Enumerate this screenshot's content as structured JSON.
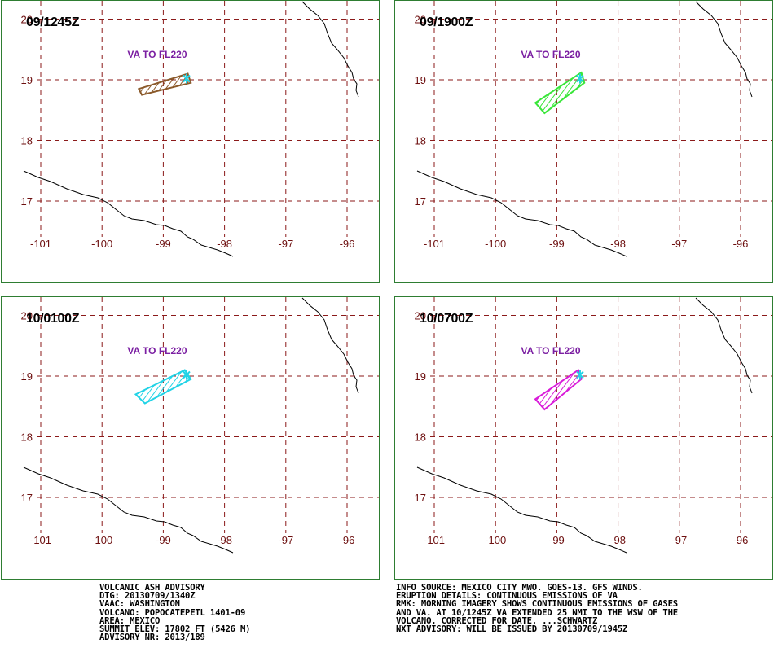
{
  "panels": [
    {
      "time": "09/1245Z",
      "label": "VA TO FL220",
      "color": "#8b5a2b",
      "polygon": [
        [
          -98.6,
          19.1
        ],
        [
          -98.55,
          18.95
        ],
        [
          -99.35,
          18.75
        ],
        [
          -99.4,
          18.85
        ]
      ]
    },
    {
      "time": "09/1900Z",
      "label": "VA TO FL220",
      "color": "#39e639",
      "polygon": [
        [
          -98.6,
          19.12
        ],
        [
          -98.55,
          18.95
        ],
        [
          -99.2,
          18.45
        ],
        [
          -99.35,
          18.62
        ]
      ]
    },
    {
      "time": "10/0100Z",
      "label": "VA TO FL220",
      "color": "#22d3e6",
      "polygon": [
        [
          -98.65,
          19.1
        ],
        [
          -98.55,
          18.95
        ],
        [
          -99.3,
          18.55
        ],
        [
          -99.45,
          18.7
        ]
      ]
    },
    {
      "time": "10/0700Z",
      "label": "VA TO FL220",
      "color": "#d91cd9",
      "polygon": [
        [
          -98.65,
          19.1
        ],
        [
          -98.6,
          18.95
        ],
        [
          -99.2,
          18.45
        ],
        [
          -99.35,
          18.62
        ]
      ]
    }
  ],
  "axes": {
    "lon_ticks": [
      "-101",
      "-100",
      "-99",
      "-98",
      "-97",
      "-96"
    ],
    "lat_ticks": [
      "20",
      "19",
      "18",
      "17"
    ]
  },
  "volcano": {
    "name": "POPOCATEPETL",
    "lon": -98.62,
    "lat": 19.02,
    "marker_color": "#22d3e6"
  },
  "advisory_left": [
    "VOLCANIC ASH ADVISORY",
    "DTG: 20130709/1340Z",
    "VAAC: WASHINGTON",
    "VOLCANO: POPOCATEPETL 1401-09",
    "AREA: MEXICO",
    "SUMMIT ELEV: 17802 FT (5426 M)",
    "ADVISORY NR: 2013/189"
  ],
  "advisory_right": [
    "INFO SOURCE: MEXICO CITY MWO. GOES-13. GFS WINDS.",
    "ERUPTION DETAILS: CONTINUOUS EMISSIONS OF VA",
    "RMK: MORNING IMAGERY SHOWS CONTINUOUS EMISSIONS OF GASES",
    "AND VA. AT 10/1245Z VA EXTENDED 25 NMI TO THE WSW OF THE",
    "VOLCANO. CORRECTED FOR DATE. ...SCHWARTZ",
    "NXT ADVISORY: WILL BE ISSUED BY 20130709/1945Z"
  ],
  "colors": {
    "grid": "#8b1a1a",
    "coast": "#000000",
    "frame": "#2e7d32",
    "va_label": "#7b1fa2"
  }
}
